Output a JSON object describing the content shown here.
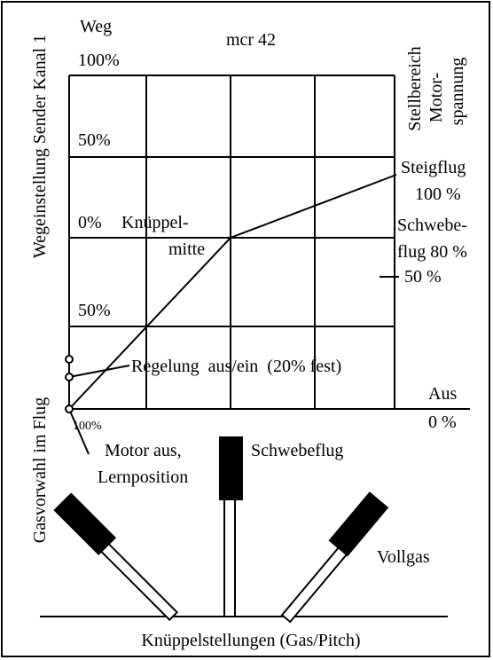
{
  "title": "mcr 42",
  "left_axis": {
    "label": "Wegeinstellung Sender Kanal 1",
    "top_label": "Weg",
    "top_percent": "100%",
    "upper_50": "50%",
    "zero": "0%",
    "lower_50": "50%",
    "bottom_percent": "100%"
  },
  "right_axis": {
    "label_1": "Stellbereich",
    "label_2": "Motor-",
    "label_3": "spannung",
    "climb": "Steigflug",
    "climb_value": "100 %",
    "hover_1": "Schwebe-",
    "hover_2": "flug 80 %",
    "mid": "50 %",
    "off": "Aus",
    "off_value": "0 %"
  },
  "annotations": {
    "center_1": "Knüppel-",
    "center_2": "mitte",
    "regulation": "Regelung  aus/ein  (20% fest)",
    "motor_off_1": "Motor aus,",
    "motor_off_2": "Lernposition",
    "throttle_preselect": "Gasvorwahl im Flug"
  },
  "sticks": {
    "hover": "Schwebeflug",
    "full": "Vollgas",
    "caption": "Knüppelstellungen (Gas/Pitch)"
  }
}
